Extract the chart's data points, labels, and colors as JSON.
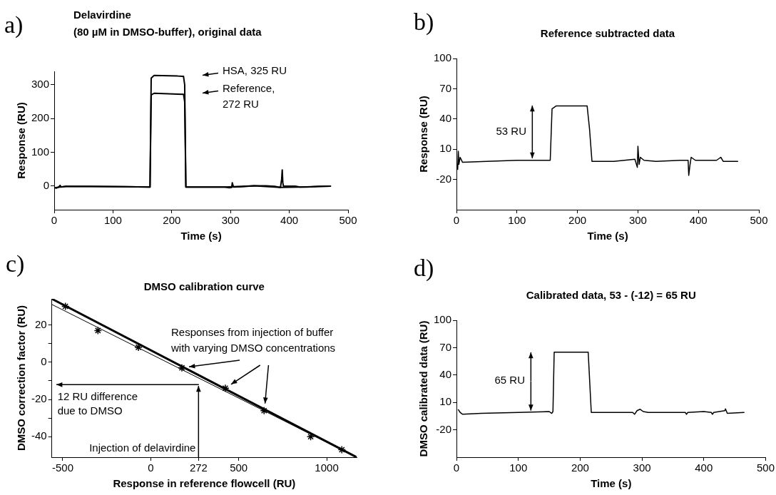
{
  "chart_data": [
    {
      "type": "line",
      "title": "Delavirdine",
      "subtitle": "(80 µM in DMSO-buffer), original data",
      "xlabel": "Time (s)",
      "ylabel": "Response (RU)",
      "xlim": [
        0,
        500
      ],
      "ylim": [
        -70,
        340
      ],
      "xticks": [
        0,
        100,
        200,
        300,
        400,
        500
      ],
      "yticks": [
        0,
        100,
        200,
        300
      ],
      "grid": false,
      "legend": false,
      "marker": "none",
      "series": [
        {
          "color": "#000000",
          "x": [
            0,
            4,
            8,
            10,
            12,
            20,
            60,
            120,
            163,
            165,
            170,
            210,
            220,
            222,
            224,
            260,
            290,
            298,
            302,
            303,
            305,
            320,
            340,
            360,
            375,
            385,
            387,
            388,
            389,
            390,
            410,
            418,
            430,
            450,
            470
          ],
          "values": [
            -5,
            -6,
            -2,
            2,
            -3,
            -1,
            -1,
            -2,
            -3,
            320,
            328,
            326,
            325,
            300,
            -3,
            -3,
            -3,
            -5,
            -4,
            10,
            -3,
            -2,
            1,
            1,
            -1,
            -4,
            20,
            48,
            10,
            0,
            0,
            -3,
            -3,
            -1,
            0
          ]
        },
        {
          "color": "#000000",
          "x": [
            0,
            20,
            120,
            163,
            165,
            170,
            220,
            222,
            224,
            290,
            340,
            385,
            418,
            470
          ],
          "values": [
            -5,
            -1,
            -2,
            -3,
            270,
            275,
            272,
            250,
            -3,
            -3,
            1,
            -4,
            -3,
            0
          ]
        }
      ],
      "annotations": [
        "a)",
        "HSA, 325 RU",
        "Reference,\n272 RU"
      ]
    },
    {
      "type": "line",
      "title": "Reference subtracted data",
      "xlabel": "Time (s)",
      "ylabel": "Response (RU)",
      "xlim": [
        0,
        500
      ],
      "ylim": [
        -50,
        100
      ],
      "xticks": [
        0,
        100,
        200,
        300,
        400,
        500
      ],
      "yticks": [
        -20,
        10,
        40,
        70,
        100
      ],
      "grid": false,
      "legend": false,
      "marker": "none",
      "series": [
        {
          "color": "#000000",
          "x": [
            0,
            2,
            3,
            4,
            6,
            10,
            50,
            100,
            155,
            158,
            165,
            200,
            216,
            220,
            224,
            260,
            295,
            299,
            300,
            302,
            304,
            310,
            330,
            370,
            383,
            384,
            386,
            388,
            395,
            430,
            437,
            441,
            465
          ],
          "values": [
            -3,
            -10,
            8,
            -5,
            2,
            -3,
            -2,
            -1,
            -1,
            50,
            53,
            53,
            53,
            30,
            -2,
            -2,
            0,
            -8,
            13,
            -5,
            2,
            -1,
            -2,
            -1,
            -1,
            -16,
            -6,
            2,
            -1,
            -1,
            2,
            -2,
            -2
          ]
        }
      ],
      "annotations": [
        "b)",
        "53 RU"
      ]
    },
    {
      "type": "scatter",
      "title": "DMSO calibration curve",
      "xlabel": "Response in reference flowcell (RU)",
      "ylabel": "DMSO correction factor (RU)",
      "xlim": [
        -562,
        1170
      ],
      "ylim": [
        -51,
        34
      ],
      "xticks": [
        -500,
        0,
        272,
        500,
        1000
      ],
      "yticks": [
        -40,
        {
          "value": -30,
          "label": null
        },
        -20,
        {
          "value": -10,
          "label": null
        },
        0,
        {
          "value": 10,
          "label": null
        },
        20
      ],
      "grid": false,
      "legend": false,
      "series": [
        {
          "color": "#000000",
          "marker": "cross",
          "x": [
            -485,
            -300,
            -70,
            177,
            424,
            644,
            909,
            1086
          ],
          "values": [
            30,
            17,
            8,
            -3,
            -14,
            -26,
            -40,
            -47
          ]
        },
        {
          "type": "line",
          "color": "#000000",
          "x": [
            -562,
            1170
          ],
          "values": [
            34,
            -51
          ]
        },
        {
          "type": "line",
          "color": "#000000",
          "x": [
            -562,
            1170
          ],
          "values": [
            31,
            -51
          ]
        }
      ],
      "annotations": [
        "c)",
        "Responses from injection of buffer\nwith varying DMSO concentrations",
        "12 RU difference\ndue to DMSO",
        "Injection of delavirdine"
      ]
    },
    {
      "type": "line",
      "title": "Calibrated data, 53 - (-12) = 65 RU",
      "xlabel": "Time (s)",
      "ylabel": "DMSO calibrated data (RU)",
      "xlim": [
        0,
        500
      ],
      "ylim": [
        -50,
        100
      ],
      "xticks": [
        0,
        100,
        200,
        300,
        400,
        500
      ],
      "yticks": [
        -20,
        10,
        40,
        70,
        100
      ],
      "grid": false,
      "legend": false,
      "marker": "none",
      "series": [
        {
          "color": "#000000",
          "x": [
            3,
            6,
            10,
            40,
            100,
            150,
            154,
            156,
            158,
            190,
            213,
            218,
            250,
            285,
            288,
            292,
            297,
            302,
            310,
            340,
            370,
            372,
            374,
            400,
            412,
            414,
            416,
            434,
            435,
            438,
            465
          ],
          "values": [
            2,
            -1,
            -3,
            -2,
            -1,
            0,
            -2,
            0,
            65,
            65,
            65,
            -1,
            -1,
            -1,
            -3,
            1,
            2.5,
            0,
            -1,
            -1,
            -1,
            -3,
            -1,
            0,
            -1,
            -3,
            -1,
            1,
            3,
            -2,
            -1
          ]
        }
      ],
      "annotations": [
        "d)",
        {
          "text": "65 RU",
          "x": 120,
          "y": -1
        }
      ]
    }
  ]
}
